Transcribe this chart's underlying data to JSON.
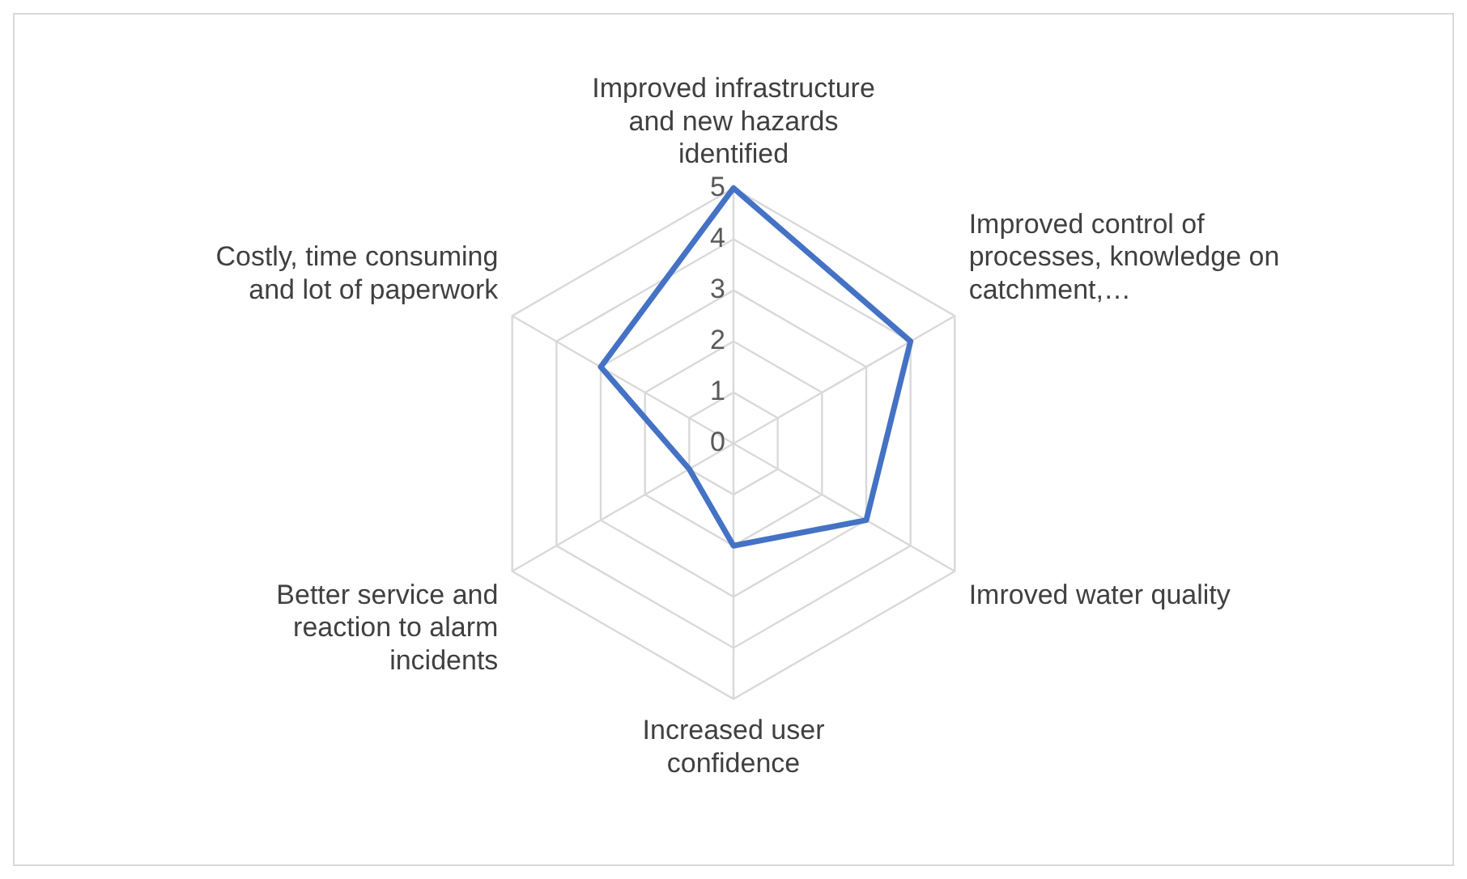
{
  "chart_data": {
    "type": "radar",
    "categories": [
      "Improved infrastructure and new hazards identified",
      "Improved control of processes, knowledge on catchment,…",
      "Imroved water quality",
      "Increased user confidence",
      "Better service and reaction to alarm incidents",
      "Costly, time consuming and lot of paperwork"
    ],
    "series": [
      {
        "color": "#4472c4",
        "values": [
          5,
          4,
          3,
          2,
          1,
          3
        ]
      }
    ],
    "ylim": [
      0,
      5
    ],
    "yticks": [
      0,
      1,
      2,
      3,
      4,
      5
    ],
    "grid": true,
    "legend": false,
    "marker": "none"
  }
}
